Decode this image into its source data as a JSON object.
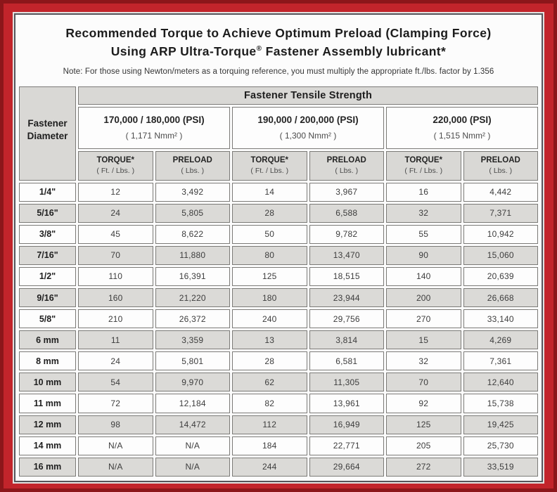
{
  "page": {
    "title_line1": "Recommended Torque to Achieve Optimum Preload (Clamping Force)",
    "title_line2_prefix": "Using ARP Ultra-Torque",
    "title_line2_sup": "®",
    "title_line2_suffix": " Fastener Assembly lubricant*",
    "note": "Note: For those using Newton/meters as a torquing reference, you must multiply the appropriate ft./lbs. factor by 1.356"
  },
  "colors": {
    "frame_red": "#c2242b",
    "frame_dark_red": "#8c161a",
    "cell_gray": "#dbdad7",
    "cell_white": "#fdfdfd",
    "border_gray": "#7b7a77"
  },
  "table": {
    "corner_header": {
      "line1": "Fastener",
      "line2": "Diameter"
    },
    "main_header": "Fastener Tensile Strength",
    "strength_groups": [
      {
        "psi": "170,000 / 180,000 (PSI)",
        "nmm": "( 1,171 Nmm² )"
      },
      {
        "psi": "190,000 / 200,000 (PSI)",
        "nmm": "( 1,300 Nmm² )"
      },
      {
        "psi": "220,000 (PSI)",
        "nmm": "( 1,515 Nmm² )"
      }
    ],
    "col_headers": [
      {
        "label": "TORQUE*",
        "unit": "( Ft. / Lbs. )"
      },
      {
        "label": "PRELOAD",
        "unit": "( Lbs. )"
      },
      {
        "label": "TORQUE*",
        "unit": "( Ft. / Lbs. )"
      },
      {
        "label": "PRELOAD",
        "unit": "( Lbs. )"
      },
      {
        "label": "TORQUE*",
        "unit": "( Ft. / Lbs. )"
      },
      {
        "label": "PRELOAD",
        "unit": "( Lbs. )"
      }
    ],
    "rows": [
      {
        "diameter": "1/4\"",
        "values": [
          "12",
          "3,492",
          "14",
          "3,967",
          "16",
          "4,442"
        ]
      },
      {
        "diameter": "5/16\"",
        "values": [
          "24",
          "5,805",
          "28",
          "6,588",
          "32",
          "7,371"
        ]
      },
      {
        "diameter": "3/8\"",
        "values": [
          "45",
          "8,622",
          "50",
          "9,782",
          "55",
          "10,942"
        ]
      },
      {
        "diameter": "7/16\"",
        "values": [
          "70",
          "11,880",
          "80",
          "13,470",
          "90",
          "15,060"
        ]
      },
      {
        "diameter": "1/2\"",
        "values": [
          "110",
          "16,391",
          "125",
          "18,515",
          "140",
          "20,639"
        ]
      },
      {
        "diameter": "9/16\"",
        "values": [
          "160",
          "21,220",
          "180",
          "23,944",
          "200",
          "26,668"
        ]
      },
      {
        "diameter": "5/8\"",
        "values": [
          "210",
          "26,372",
          "240",
          "29,756",
          "270",
          "33,140"
        ]
      },
      {
        "diameter": "6 mm",
        "values": [
          "11",
          "3,359",
          "13",
          "3,814",
          "15",
          "4,269"
        ]
      },
      {
        "diameter": "8 mm",
        "values": [
          "24",
          "5,801",
          "28",
          "6,581",
          "32",
          "7,361"
        ]
      },
      {
        "diameter": "10 mm",
        "values": [
          "54",
          "9,970",
          "62",
          "11,305",
          "70",
          "12,640"
        ]
      },
      {
        "diameter": "11 mm",
        "values": [
          "72",
          "12,184",
          "82",
          "13,961",
          "92",
          "15,738"
        ]
      },
      {
        "diameter": "12 mm",
        "values": [
          "98",
          "14,472",
          "112",
          "16,949",
          "125",
          "19,425"
        ]
      },
      {
        "diameter": "14 mm",
        "values": [
          "N/A",
          "N/A",
          "184",
          "22,771",
          "205",
          "25,730"
        ]
      },
      {
        "diameter": "16 mm",
        "values": [
          "N/A",
          "N/A",
          "244",
          "29,664",
          "272",
          "33,519"
        ]
      }
    ]
  }
}
